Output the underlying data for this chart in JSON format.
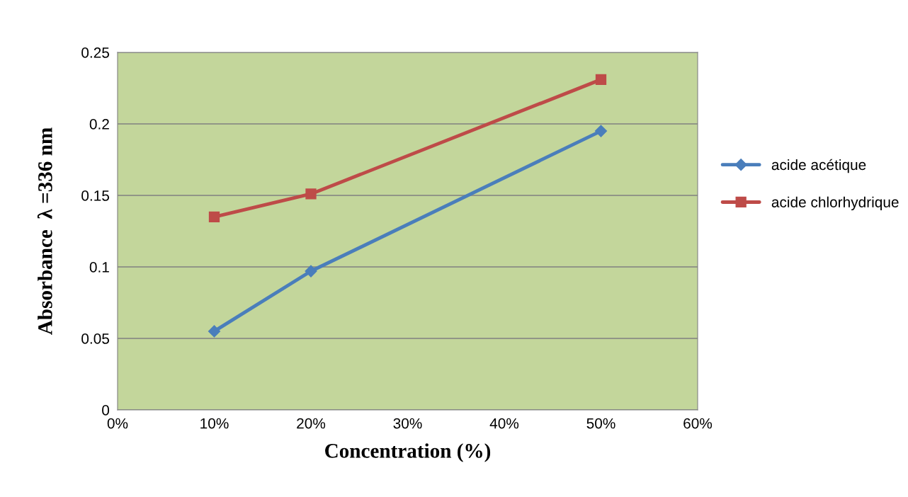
{
  "chart_data": {
    "type": "line",
    "xlabel": "Concentration (%)",
    "ylabel": "Absorbance  λ =336 nm",
    "x": [
      0.1,
      0.2,
      0.5
    ],
    "series": [
      {
        "name": "acide acétique",
        "color": "#4a7ebb",
        "marker": "diamond",
        "values": [
          0.055,
          0.097,
          0.195
        ]
      },
      {
        "name": "acide chlorhydrique",
        "color": "#be4b48",
        "marker": "square",
        "values": [
          0.135,
          0.151,
          0.231
        ]
      }
    ],
    "xlim": [
      0,
      0.6
    ],
    "xticks": [
      {
        "value": 0,
        "label": "0%"
      },
      {
        "value": 0.1,
        "label": "10%"
      },
      {
        "value": 0.2,
        "label": "20%"
      },
      {
        "value": 0.3,
        "label": "30%"
      },
      {
        "value": 0.4,
        "label": "40%"
      },
      {
        "value": 0.5,
        "label": "50%"
      },
      {
        "value": 0.6,
        "label": "60%"
      }
    ],
    "ylim": [
      0,
      0.25
    ],
    "yticks": [
      0,
      0.05,
      0.1,
      0.15,
      0.2,
      0.25
    ],
    "grid": "y",
    "legend": "right",
    "line_style": "solid"
  }
}
